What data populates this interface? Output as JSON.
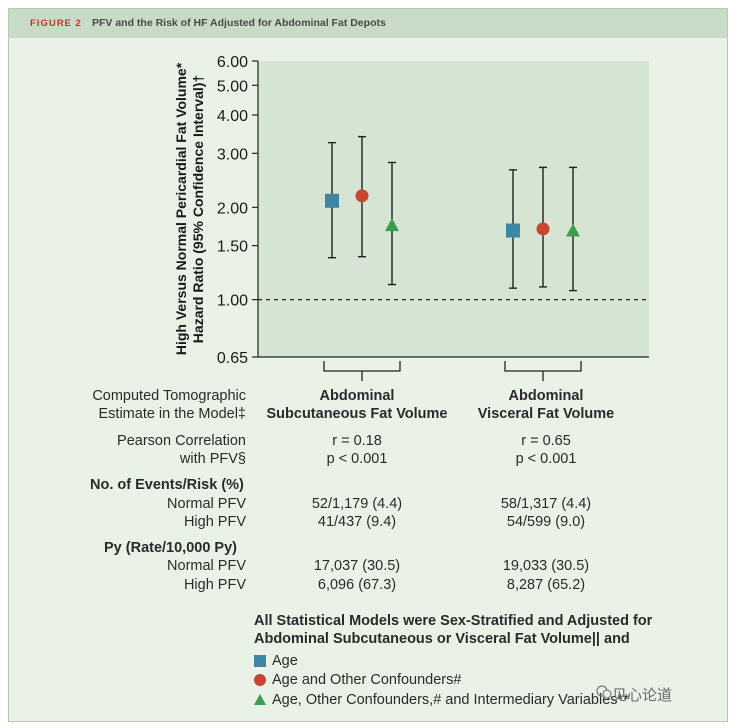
{
  "figure": {
    "label": "FIGURE 2",
    "title": "PFV and the Risk of HF Adjusted for Abdominal Fat Depots"
  },
  "chart_data": {
    "type": "scatter",
    "ylabel_line1": "High Versus Normal Pericardial Fat Volume*",
    "ylabel_line2": "Hazard Ratio (95% Confidence Interval)†",
    "yscale": "log",
    "ylim": [
      0.65,
      6.0
    ],
    "yticks": [
      "0.65",
      "1.00",
      "1.50",
      "2.00",
      "3.00",
      "4.00",
      "5.00",
      "6.00"
    ],
    "reference_line": 1.0,
    "groups": [
      "Abdominal Subcutaneous Fat Volume",
      "Abdominal Visceral Fat Volume"
    ],
    "series": [
      {
        "name": "Age",
        "marker": "square",
        "color": "#3d86a8",
        "values": [
          2.1,
          1.68
        ],
        "lower": [
          1.37,
          1.09
        ],
        "upper": [
          3.25,
          2.65
        ]
      },
      {
        "name": "Age and Other Confounders#",
        "marker": "circle",
        "color": "#c8452f",
        "values": [
          2.18,
          1.7
        ],
        "lower": [
          1.38,
          1.1
        ],
        "upper": [
          3.4,
          2.7
        ]
      },
      {
        "name": "Age, Other Confounders,# and Intermediary Variables**",
        "marker": "triangle",
        "color": "#3f9b4e",
        "values": [
          1.75,
          1.68
        ],
        "lower": [
          1.12,
          1.07
        ],
        "upper": [
          2.8,
          2.7
        ]
      }
    ]
  },
  "table": {
    "row_ct_label_1": "Computed Tomographic",
    "row_ct_label_2": "Estimate in the Model‡",
    "col1_head_1": "Abdominal",
    "col1_head_2": "Subcutaneous Fat Volume",
    "col2_head_1": "Abdominal",
    "col2_head_2": "Visceral Fat Volume",
    "pearson_label_1": "Pearson Correlation",
    "pearson_label_2": "with PFV§",
    "col1_r": "r = 0.18",
    "col1_p": "p < 0.001",
    "col2_r": "r = 0.65",
    "col2_p": "p < 0.001",
    "events_heading": "No. of Events/Risk (%)",
    "normal_label": "Normal PFV",
    "high_label": "High PFV",
    "events_normal_1": "52/1,179 (4.4)",
    "events_normal_2": "58/1,317 (4.4)",
    "events_high_1": "41/437 (9.4)",
    "events_high_2": "54/599 (9.0)",
    "py_heading": "Py (Rate/10,000 Py)",
    "py_normal_1": "17,037 (30.5)",
    "py_normal_2": "19,033 (30.5)",
    "py_high_1": "6,096 (67.3)",
    "py_high_2": "8,287 (65.2)"
  },
  "legend": {
    "heading_1": "All Statistical Models were Sex-Stratified and Adjusted for",
    "heading_2": "Abdominal Subcutaneous or Visceral Fat Volume|| and",
    "item1": "Age",
    "item2": "Age and Other Confounders#",
    "item3": "Age, Other Confounders,# and Intermediary Variables**"
  },
  "watermark": "见心论道",
  "colors": {
    "plot_bg": "#d6e4d3",
    "panel_bg": "#eaf2e8",
    "header_bg": "#c8dbc6",
    "accent_red": "#c0392b"
  }
}
